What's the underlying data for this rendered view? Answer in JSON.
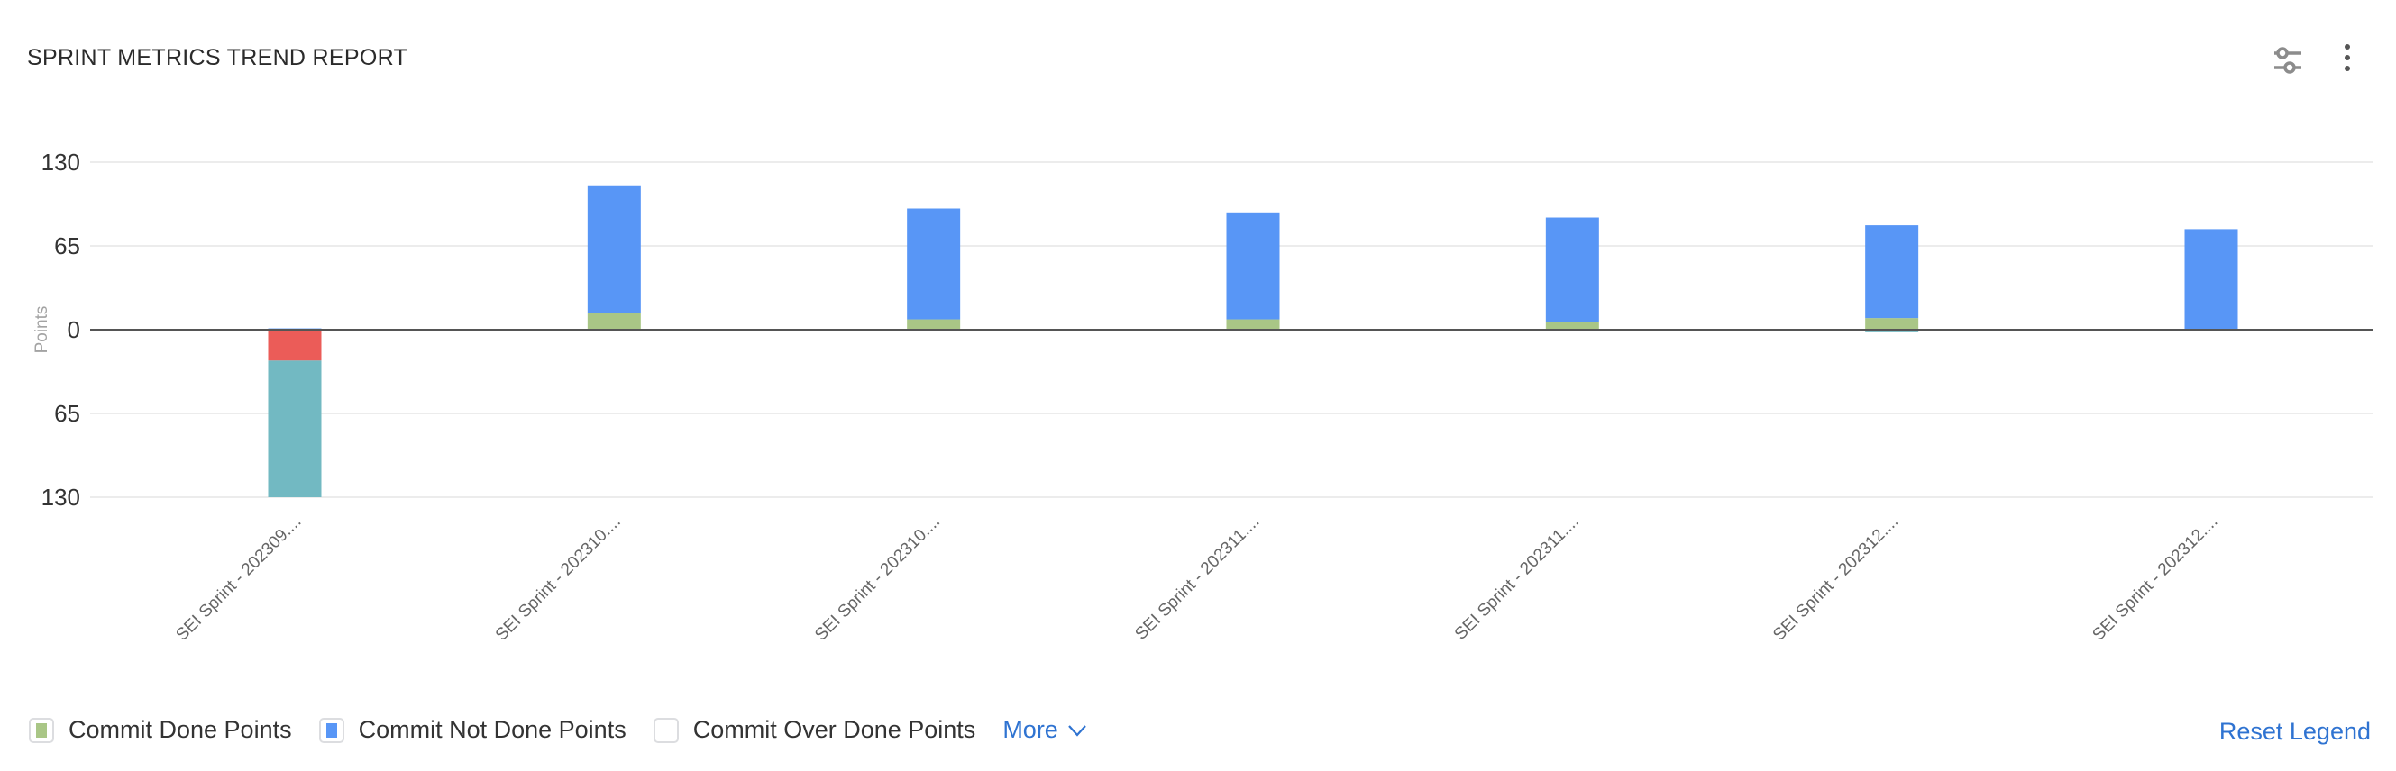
{
  "header": {
    "title": "SPRINT METRICS TREND REPORT",
    "settings_icon": "sliders-icon",
    "menu_icon": "more-vertical-icon"
  },
  "chart_data": {
    "type": "bar",
    "stacked": true,
    "ylabel": "Points",
    "ylim": [
      -130,
      130
    ],
    "yticks": [
      {
        "value": 130,
        "label": "130"
      },
      {
        "value": 65,
        "label": "65"
      },
      {
        "value": 0,
        "label": "0"
      },
      {
        "value": -65,
        "label": "65"
      },
      {
        "value": -130,
        "label": "130"
      }
    ],
    "grid": true,
    "legend_position": "bottom-left",
    "categories": [
      "SEI Sprint - 202309....",
      "SEI Sprint - 202310....",
      "SEI Sprint - 202310....",
      "SEI Sprint - 202311....",
      "SEI Sprint - 202311....",
      "SEI Sprint - 202312....",
      "SEI Sprint - 202312...."
    ],
    "series": [
      {
        "name": "Commit Done Points",
        "color": "#a9c686",
        "values": [
          0,
          13,
          8,
          8,
          6,
          9,
          0
        ]
      },
      {
        "name": "Commit Not Done Points",
        "color": "#5896f6",
        "values": [
          1,
          99,
          86,
          83,
          81,
          72,
          78
        ]
      },
      {
        "name": "Commit Over Done Points",
        "color": "#ffffff",
        "values": [
          0,
          0,
          0,
          0,
          0,
          0,
          0
        ],
        "hidden": true
      },
      {
        "color": "#eb5c58",
        "values": [
          -24,
          0,
          0,
          -1,
          0,
          0,
          0
        ]
      },
      {
        "color": "#72b9c2",
        "values": [
          -106,
          0,
          0,
          0,
          0,
          -2,
          0
        ]
      }
    ]
  },
  "legend": {
    "items": [
      {
        "label": "Commit Done Points",
        "color": "#a9c686",
        "checked": true
      },
      {
        "label": "Commit Not Done Points",
        "color": "#5896f6",
        "checked": true
      },
      {
        "label": "Commit Over Done Points",
        "color": "#ffffff",
        "checked": false
      }
    ],
    "more_label": "More",
    "reset_label": "Reset Legend"
  }
}
